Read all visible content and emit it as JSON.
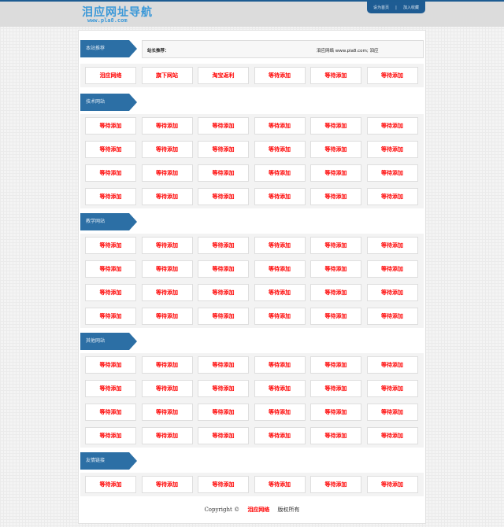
{
  "header": {
    "logo": "泪应网址导航",
    "logo_url": "www.pla8.com",
    "links": [
      "设为首页",
      "|",
      "加入收藏"
    ]
  },
  "recommend": {
    "label": "站长推荐：",
    "text": "泪应网络  www.pla8.com; 泪应"
  },
  "sections": [
    {
      "title": "本站推荐",
      "items": [
        "泪应网络",
        "旗下网站",
        "淘宝返利",
        "等待添加",
        "等待添加",
        "等待添加"
      ]
    },
    {
      "title": "技术网站",
      "items": [
        "等待添加",
        "等待添加",
        "等待添加",
        "等待添加",
        "等待添加",
        "等待添加",
        "等待添加",
        "等待添加",
        "等待添加",
        "等待添加",
        "等待添加",
        "等待添加",
        "等待添加",
        "等待添加",
        "等待添加",
        "等待添加",
        "等待添加",
        "等待添加",
        "等待添加",
        "等待添加",
        "等待添加",
        "等待添加",
        "等待添加",
        "等待添加"
      ]
    },
    {
      "title": "教学网站",
      "items": [
        "等待添加",
        "等待添加",
        "等待添加",
        "等待添加",
        "等待添加",
        "等待添加",
        "等待添加",
        "等待添加",
        "等待添加",
        "等待添加",
        "等待添加",
        "等待添加",
        "等待添加",
        "等待添加",
        "等待添加",
        "等待添加",
        "等待添加",
        "等待添加",
        "等待添加",
        "等待添加",
        "等待添加",
        "等待添加",
        "等待添加",
        "等待添加"
      ]
    },
    {
      "title": "其他网站",
      "items": [
        "等待添加",
        "等待添加",
        "等待添加",
        "等待添加",
        "等待添加",
        "等待添加",
        "等待添加",
        "等待添加",
        "等待添加",
        "等待添加",
        "等待添加",
        "等待添加",
        "等待添加",
        "等待添加",
        "等待添加",
        "等待添加",
        "等待添加",
        "等待添加",
        "等待添加",
        "等待添加",
        "等待添加",
        "等待添加",
        "等待添加",
        "等待添加"
      ]
    },
    {
      "title": "友情链接",
      "items": [
        "等待添加",
        "等待添加",
        "等待添加",
        "等待添加",
        "等待添加",
        "等待添加"
      ]
    }
  ],
  "footer": {
    "copyright": "Copyright ©",
    "site": "泪应网络",
    "rights": "版权所有"
  }
}
